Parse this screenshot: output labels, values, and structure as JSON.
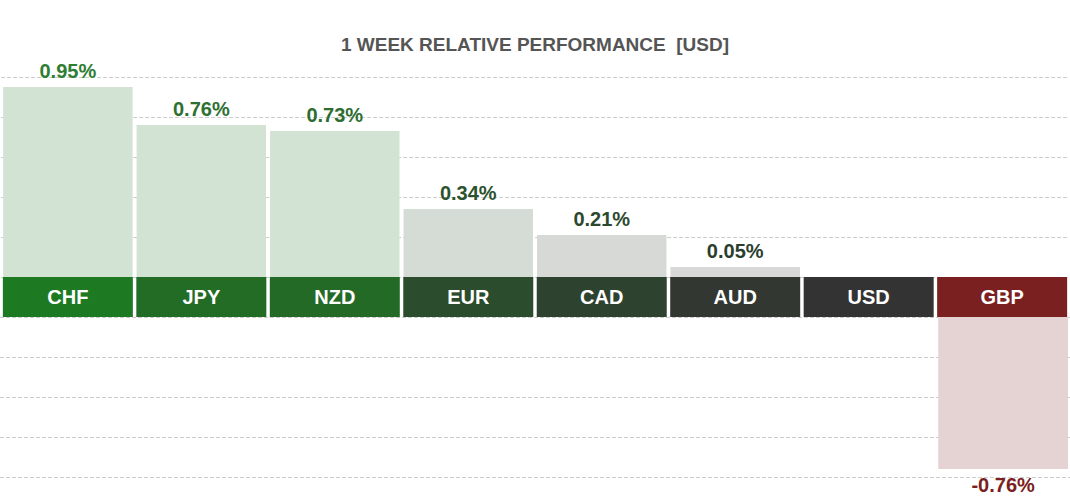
{
  "chart_data": {
    "type": "bar",
    "title": "1 WEEK RELATIVE PERFORMANCE  [USD]",
    "categories": [
      "CHF",
      "JPY",
      "NZD",
      "EUR",
      "CAD",
      "AUD",
      "USD",
      "GBP"
    ],
    "values": [
      0.95,
      0.76,
      0.73,
      0.34,
      0.21,
      0.05,
      0,
      -0.76
    ],
    "value_labels": [
      "0.95%",
      "0.76%",
      "0.73%",
      "0.34%",
      "0.21%",
      "0.05%",
      null,
      "-0.76%"
    ],
    "colors": [
      "#d3e3d3",
      "#d3e3d3",
      "#d3e3d3",
      "#d5dcd5",
      "#d6d9d6",
      "#d8d8d8",
      "#d8d8d8",
      "#e5d3d3"
    ],
    "ylim": [
      -0.8,
      1.0
    ],
    "yticks": [
      -0.8,
      -0.6,
      -0.4,
      -0.2,
      0,
      0.2,
      0.4,
      0.6,
      0.8,
      1.0
    ],
    "grid": true,
    "data_labels": true,
    "tick_labels": "x"
  }
}
